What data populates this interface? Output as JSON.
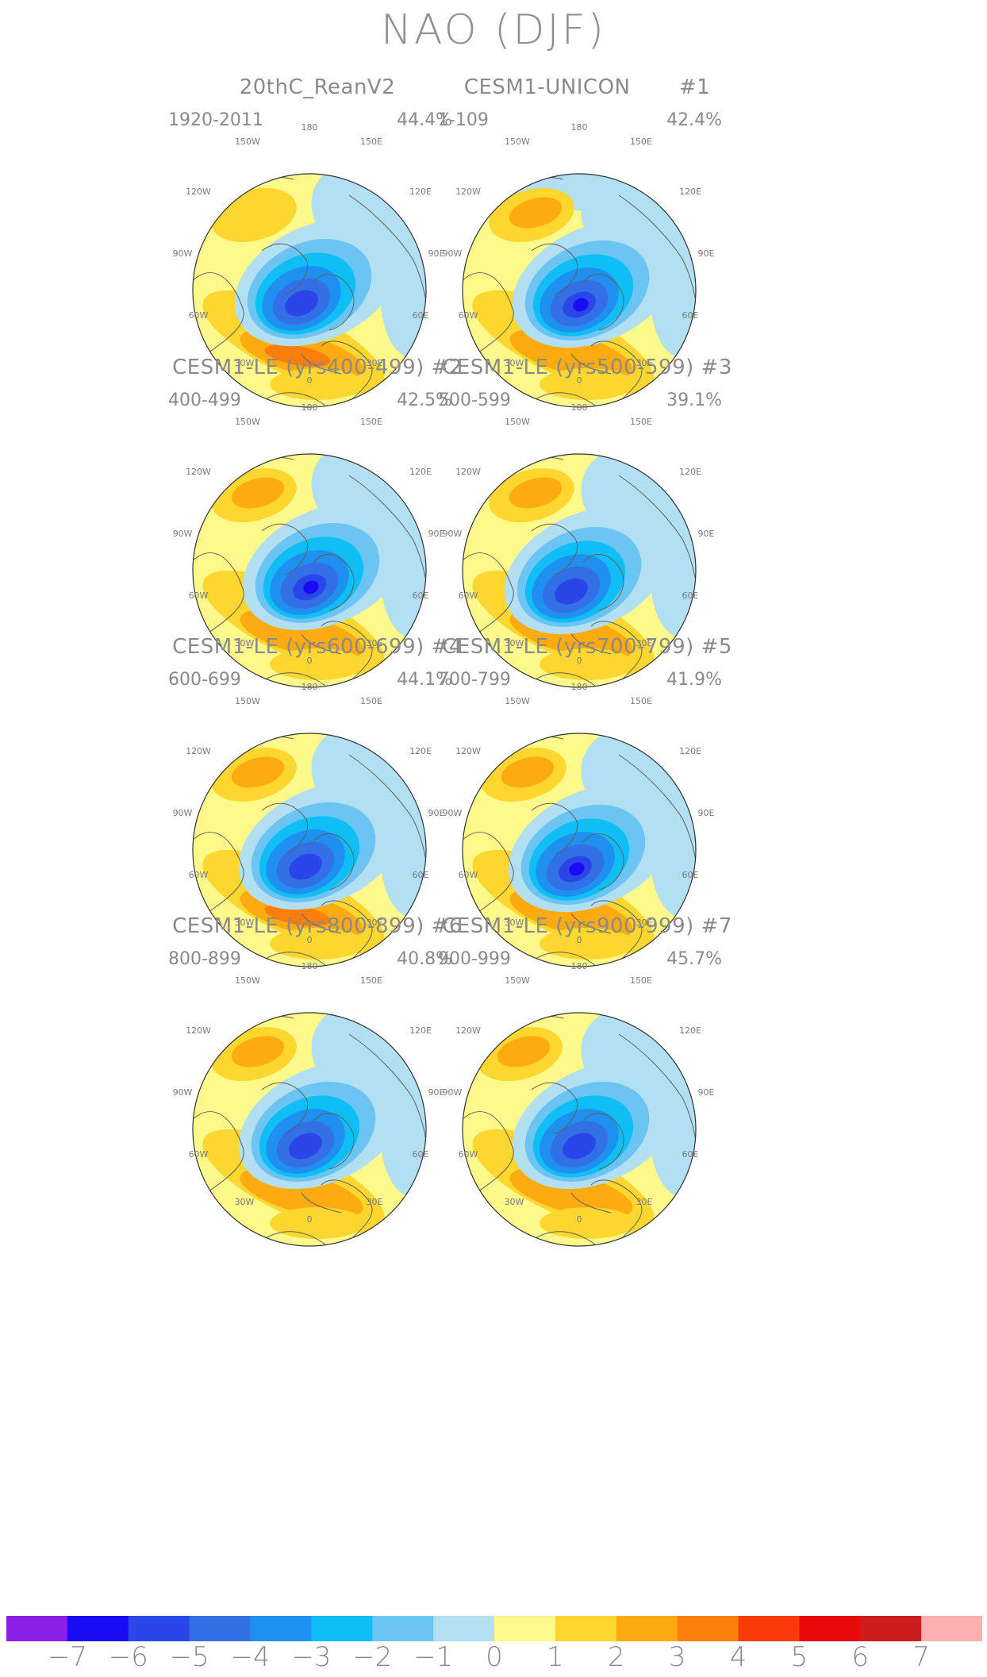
{
  "title": "NAO (DJF)",
  "longitude_labels": [
    "180",
    "150W",
    "150E",
    "120W",
    "120E",
    "90W",
    "90E",
    "60W",
    "60E",
    "30W",
    "30E",
    "0"
  ],
  "panels": [
    {
      "title": "20thC_ReanV2",
      "period": "1920-2011",
      "percent": "44.4%",
      "variant": 0
    },
    {
      "title": "CESM1-UNICON       #1",
      "period": "1-109",
      "percent": "42.4%",
      "variant": 1
    },
    {
      "title": "CESM1-LE (yrs400-499) #2",
      "period": "400-499",
      "percent": "42.5%",
      "variant": 2
    },
    {
      "title": "CESM1-LE (yrs500-599) #3",
      "period": "500-599",
      "percent": "39.1%",
      "variant": 3
    },
    {
      "title": "CESM1-LE (yrs600-699) #4",
      "period": "600-699",
      "percent": "44.1%",
      "variant": 4
    },
    {
      "title": "CESM1-LE (yrs700-799) #5",
      "period": "700-799",
      "percent": "41.9%",
      "variant": 5
    },
    {
      "title": "CESM1-LE (yrs800-899) #6",
      "period": "800-899",
      "percent": "40.8%",
      "variant": 6
    },
    {
      "title": "CESM1-LE (yrs900-999) #7",
      "period": "900-999",
      "percent": "45.7%",
      "variant": 7
    }
  ],
  "colorbar": {
    "colors": [
      "#8a1fe6",
      "#1a0cf2",
      "#2a46e8",
      "#3370e6",
      "#1f90f0",
      "#0fbef5",
      "#6cc4f2",
      "#b2dff2",
      "#fdf98a",
      "#fdd630",
      "#fdab10",
      "#fc7e0d",
      "#fb3a0a",
      "#e80a0a",
      "#cc1c1c",
      "#fcb0b0"
    ],
    "labels": [
      "−7",
      "−6",
      "−5",
      "−4",
      "−3",
      "−2",
      "−1",
      "0",
      "1",
      "2",
      "3",
      "4",
      "5",
      "6",
      "7"
    ]
  }
}
